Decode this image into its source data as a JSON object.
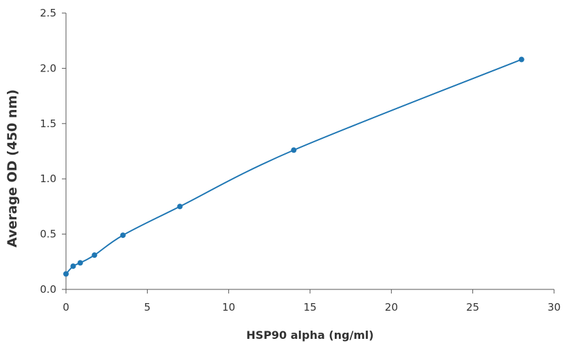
{
  "chart_data": {
    "type": "line",
    "title": "",
    "xlabel": "HSP90 alpha (ng/ml)",
    "ylabel": "Average OD (450 nm)",
    "xlim": [
      0,
      30
    ],
    "ylim": [
      0,
      2.5
    ],
    "xticks": [
      "0",
      "5",
      "10",
      "15",
      "20",
      "25",
      "30"
    ],
    "yticks": [
      "0.0",
      "0.5",
      "1.0",
      "1.5",
      "2.0",
      "2.5"
    ],
    "grid": false,
    "legend": "none",
    "series": [
      {
        "color": "#1f77b4",
        "x": [
          0,
          0.44,
          0.875,
          1.75,
          3.5,
          7,
          14,
          28
        ],
        "y": [
          0.14,
          0.21,
          0.24,
          0.31,
          0.49,
          0.75,
          1.26,
          2.08
        ]
      }
    ]
  }
}
